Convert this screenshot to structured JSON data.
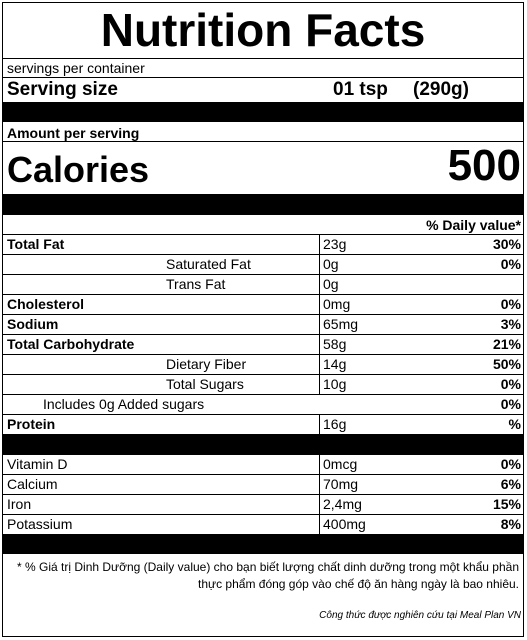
{
  "label": {
    "title": "Nutrition Facts",
    "servings_per_container": "servings per container",
    "serving_size_label": "Serving size",
    "serving_size_amount": "01 tsp",
    "serving_size_grams": "(290g)",
    "amount_per_serving": "Amount per serving",
    "calories_label": "Calories",
    "calories_value": "500",
    "daily_value_header": "% Daily value*"
  },
  "nutrients": [
    {
      "name": "Total Fat",
      "amount": "23g",
      "dv": "30%"
    },
    {
      "name": "Saturated Fat",
      "amount": "0g",
      "dv": "0%"
    },
    {
      "name": "Trans Fat",
      "amount": "0g",
      "dv": ""
    },
    {
      "name": "Cholesterol",
      "amount": "0mg",
      "dv": "0%"
    },
    {
      "name": "Sodium",
      "amount": "65mg",
      "dv": "3%"
    },
    {
      "name": "Total Carbohydrate",
      "amount": "58g",
      "dv": "21%"
    },
    {
      "name": "Dietary Fiber",
      "amount": "14g",
      "dv": "50%"
    },
    {
      "name": "Total Sugars",
      "amount": "10g",
      "dv": "0%"
    },
    {
      "name": "Includes 0g Added sugars",
      "amount": "",
      "dv": "0%"
    },
    {
      "name": "Protein",
      "amount": "16g",
      "dv": "%"
    }
  ],
  "vitamins": [
    {
      "name": "Vitamin D",
      "amount": "0mcg",
      "dv": "0%"
    },
    {
      "name": "Calcium",
      "amount": "70mg",
      "dv": "6%"
    },
    {
      "name": "Iron",
      "amount": "2,4mg",
      "dv": "15%"
    },
    {
      "name": "Potassium",
      "amount": "400mg",
      "dv": "8%"
    }
  ],
  "footnote": "* % Giá trị Dinh Dưỡng (Daily value) cho bạn biết lượng chất dinh dưỡng trong một khẩu phần thực phẩm đóng góp vào chế độ ăn hàng ngày là bao nhiêu.",
  "credit": "Công thức được nghiên cứu tại Meal Plan VN"
}
